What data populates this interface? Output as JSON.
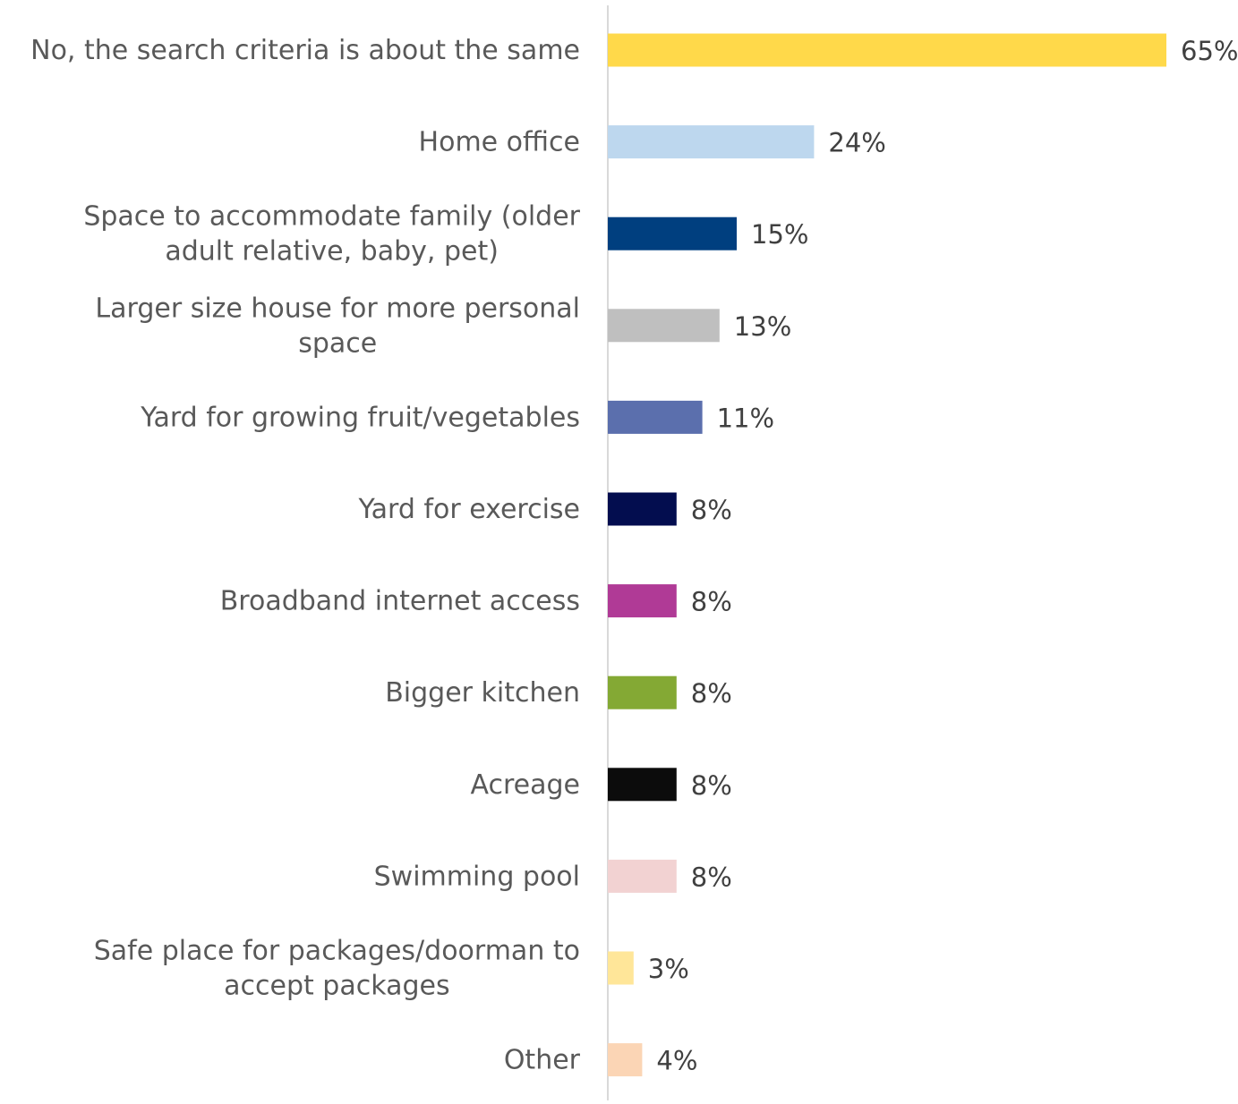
{
  "chart_data": {
    "type": "bar",
    "orientation": "horizontal",
    "title": "",
    "xlabel": "",
    "ylabel": "",
    "xlim": [
      0,
      65
    ],
    "grid": false,
    "legend": "none",
    "value_suffix": "%",
    "categories": [
      "No, the search criteria is about the same",
      "Home office",
      "Space to accommodate family (older adult relative, baby, pet)",
      "Larger size house for more personal space",
      "Yard for growing fruit/vegetables",
      "Yard for exercise",
      "Broadband internet access",
      "Bigger kitchen",
      "Acreage",
      "Swimming pool",
      "Safe place for packages/doorman to accept packages",
      "Other"
    ],
    "label_lines": [
      [
        "No, the search criteria is about the same"
      ],
      [
        "Home office"
      ],
      [
        "Space to accommodate family (older",
        "adult relative, baby, pet)"
      ],
      [
        "Larger size house for more personal",
        "space"
      ],
      [
        "Yard for growing fruit/vegetables"
      ],
      [
        "Yard for exercise"
      ],
      [
        "Broadband internet access"
      ],
      [
        "Bigger kitchen"
      ],
      [
        "Acreage"
      ],
      [
        "Swimming pool"
      ],
      [
        "Safe place for packages/doorman to",
        "accept packages"
      ],
      [
        "Other"
      ]
    ],
    "values": [
      65,
      24,
      15,
      13,
      11,
      8,
      8,
      8,
      8,
      8,
      3,
      4
    ],
    "value_labels": [
      "65%",
      "24%",
      "15%",
      "13%",
      "11%",
      "8%",
      "8%",
      "8%",
      "8%",
      "8%",
      "3%",
      "4%"
    ],
    "colors": [
      "#FFD94A",
      "#BDD7EE",
      "#003F7F",
      "#BFBFBF",
      "#5B6FAD",
      "#030D4F",
      "#B03A96",
      "#84A934",
      "#0C0C0C",
      "#F2D2D2",
      "#FFE699",
      "#FBD5B5"
    ],
    "axis_color": "#D9D9D9"
  }
}
